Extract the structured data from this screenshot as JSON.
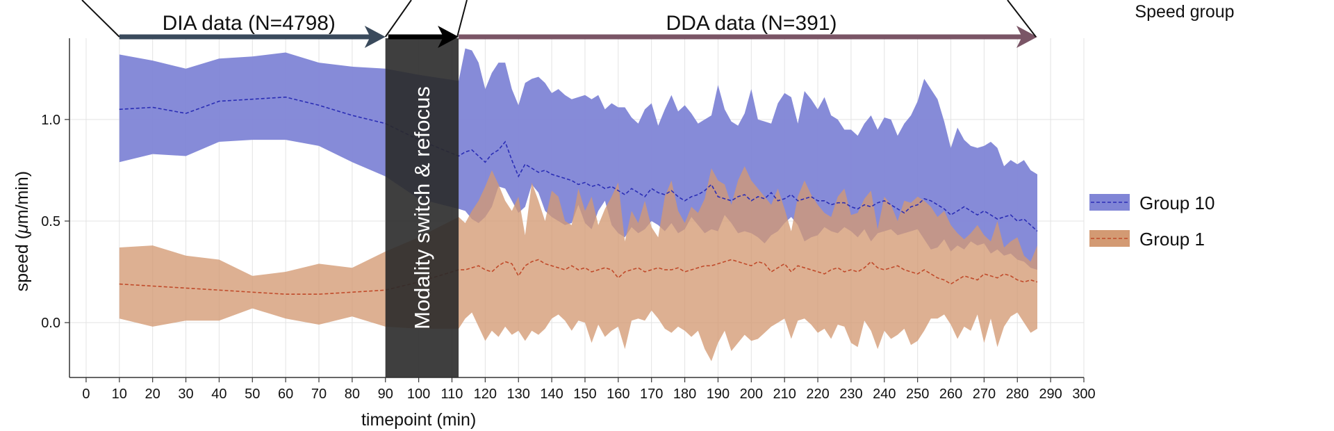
{
  "chart_data": {
    "type": "area",
    "xlabel": "timepoint (min)",
    "ylabel_prefix": "speed (",
    "ylabel_mu": "μ",
    "ylabel_suffix": "m/min)",
    "xlim": [
      -5,
      300
    ],
    "ylim": [
      -0.27,
      1.4
    ],
    "xticks": [
      0,
      10,
      20,
      30,
      40,
      50,
      60,
      70,
      80,
      90,
      100,
      110,
      120,
      130,
      140,
      150,
      160,
      170,
      180,
      190,
      200,
      210,
      220,
      230,
      240,
      250,
      260,
      270,
      280,
      290,
      300
    ],
    "yticks": [
      0.0,
      0.5,
      1.0
    ],
    "ytick_labels": [
      "0.0",
      "0.5",
      "1.0"
    ],
    "grid": true,
    "legend": {
      "title": "Speed group",
      "position": "right",
      "items": [
        {
          "label": "Group 10",
          "fill": "#8085d6",
          "line": "#2a2db5"
        },
        {
          "label": "Group 1",
          "fill": "#d39a73",
          "line": "#c04a2a"
        }
      ]
    },
    "annotations": {
      "dia": {
        "label": "DIA data (N=4798)",
        "x_start": 10,
        "x_end": 90,
        "color": "#3a4a5c"
      },
      "switch": {
        "x_start": 90,
        "x_end": 112,
        "color": "#000000"
      },
      "dda": {
        "label": "DDA data (N=391)",
        "x_start": 112,
        "x_end": 286,
        "color": "#7a5566"
      },
      "modality_box": {
        "label": "Modality switch & refocus",
        "x_start": 90,
        "x_end": 112,
        "y_min": -0.27,
        "color": "#2a2a2a"
      }
    },
    "series": [
      {
        "name": "Group 10",
        "x": [
          10,
          20,
          30,
          40,
          50,
          60,
          70,
          80,
          90,
          100,
          112,
          114,
          116,
          118,
          120,
          122,
          124,
          126,
          128,
          130,
          132,
          134,
          136,
          138,
          140,
          142,
          144,
          146,
          148,
          150,
          152,
          154,
          156,
          158,
          160,
          162,
          164,
          166,
          168,
          170,
          172,
          174,
          176,
          178,
          180,
          182,
          184,
          186,
          188,
          190,
          192,
          194,
          196,
          198,
          200,
          202,
          204,
          206,
          208,
          210,
          212,
          214,
          216,
          218,
          220,
          222,
          224,
          226,
          228,
          230,
          232,
          234,
          236,
          238,
          240,
          242,
          244,
          246,
          248,
          250,
          252,
          254,
          256,
          258,
          260,
          262,
          264,
          266,
          268,
          270,
          272,
          274,
          276,
          278,
          280,
          282,
          284,
          286
        ],
        "mean": [
          1.05,
          1.06,
          1.03,
          1.09,
          1.1,
          1.11,
          1.07,
          1.02,
          0.98,
          0.9,
          0.82,
          0.84,
          0.85,
          0.82,
          0.79,
          0.83,
          0.85,
          0.89,
          0.8,
          0.72,
          0.78,
          0.76,
          0.74,
          0.75,
          0.73,
          0.72,
          0.71,
          0.7,
          0.68,
          0.69,
          0.67,
          0.68,
          0.66,
          0.67,
          0.65,
          0.63,
          0.66,
          0.64,
          0.62,
          0.66,
          0.64,
          0.63,
          0.65,
          0.62,
          0.6,
          0.62,
          0.63,
          0.65,
          0.68,
          0.62,
          0.61,
          0.6,
          0.62,
          0.63,
          0.6,
          0.62,
          0.61,
          0.64,
          0.6,
          0.61,
          0.63,
          0.6,
          0.61,
          0.62,
          0.6,
          0.6,
          0.58,
          0.59,
          0.59,
          0.57,
          0.56,
          0.58,
          0.57,
          0.59,
          0.6,
          0.58,
          0.56,
          0.54,
          0.57,
          0.58,
          0.61,
          0.6,
          0.58,
          0.56,
          0.53,
          0.55,
          0.57,
          0.55,
          0.53,
          0.55,
          0.53,
          0.51,
          0.52,
          0.53,
          0.5,
          0.51,
          0.48,
          0.45
        ],
        "upper": [
          1.32,
          1.29,
          1.25,
          1.3,
          1.31,
          1.33,
          1.28,
          1.26,
          1.25,
          1.22,
          1.19,
          1.35,
          1.34,
          1.28,
          1.15,
          1.23,
          1.28,
          1.28,
          1.15,
          1.07,
          1.18,
          1.2,
          1.21,
          1.18,
          1.13,
          1.15,
          1.12,
          1.1,
          1.11,
          1.12,
          1.1,
          1.12,
          1.05,
          1.08,
          1.06,
          1.06,
          1.01,
          0.98,
          1.05,
          1.08,
          0.97,
          1.05,
          1.12,
          1.04,
          1.07,
          1.03,
          0.98,
          1.0,
          1.02,
          1.17,
          1.05,
          0.99,
          0.97,
          1.03,
          1.15,
          1.0,
          0.99,
          0.98,
          1.08,
          1.13,
          1.11,
          0.98,
          1.14,
          1.1,
          1.05,
          1.11,
          1.02,
          1.0,
          0.95,
          0.95,
          0.92,
          0.98,
          1.02,
          0.95,
          1.01,
          1.0,
          0.92,
          0.98,
          1.02,
          1.09,
          1.2,
          1.15,
          1.1,
          0.99,
          0.86,
          0.96,
          0.9,
          0.87,
          0.86,
          0.87,
          0.89,
          0.86,
          0.77,
          0.8,
          0.78,
          0.8,
          0.75,
          0.73
        ],
        "lower": [
          0.79,
          0.83,
          0.82,
          0.89,
          0.9,
          0.9,
          0.87,
          0.79,
          0.72,
          0.61,
          0.56,
          0.55,
          0.51,
          0.49,
          0.52,
          0.57,
          0.67,
          0.66,
          0.6,
          0.54,
          0.57,
          0.68,
          0.64,
          0.55,
          0.52,
          0.5,
          0.48,
          0.49,
          0.58,
          0.49,
          0.46,
          0.55,
          0.6,
          0.48,
          0.44,
          0.42,
          0.47,
          0.44,
          0.46,
          0.5,
          0.48,
          0.45,
          0.49,
          0.44,
          0.46,
          0.52,
          0.48,
          0.44,
          0.46,
          0.45,
          0.53,
          0.49,
          0.44,
          0.45,
          0.44,
          0.42,
          0.39,
          0.43,
          0.45,
          0.49,
          0.52,
          0.48,
          0.4,
          0.42,
          0.43,
          0.47,
          0.45,
          0.44,
          0.47,
          0.45,
          0.42,
          0.46,
          0.4,
          0.44,
          0.45,
          0.46,
          0.43,
          0.44,
          0.45,
          0.46,
          0.41,
          0.36,
          0.37,
          0.41,
          0.35,
          0.38,
          0.36,
          0.4,
          0.38,
          0.39,
          0.34,
          0.36,
          0.33,
          0.34,
          0.31,
          0.3,
          0.27,
          0.26
        ]
      },
      {
        "name": "Group 1",
        "x": [
          10,
          20,
          30,
          40,
          50,
          60,
          70,
          80,
          90,
          100,
          112,
          114,
          116,
          118,
          120,
          122,
          124,
          126,
          128,
          130,
          132,
          134,
          136,
          138,
          140,
          142,
          144,
          146,
          148,
          150,
          152,
          154,
          156,
          158,
          160,
          162,
          164,
          166,
          168,
          170,
          172,
          174,
          176,
          178,
          180,
          182,
          184,
          186,
          188,
          190,
          192,
          194,
          196,
          198,
          200,
          202,
          204,
          206,
          208,
          210,
          212,
          214,
          216,
          218,
          220,
          222,
          224,
          226,
          228,
          230,
          232,
          234,
          236,
          238,
          240,
          242,
          244,
          246,
          248,
          250,
          252,
          254,
          256,
          258,
          260,
          262,
          264,
          266,
          268,
          270,
          272,
          274,
          276,
          278,
          280,
          282,
          284,
          286
        ],
        "mean": [
          0.19,
          0.18,
          0.17,
          0.16,
          0.15,
          0.14,
          0.14,
          0.15,
          0.16,
          0.2,
          0.26,
          0.26,
          0.27,
          0.28,
          0.26,
          0.25,
          0.28,
          0.3,
          0.29,
          0.23,
          0.28,
          0.3,
          0.31,
          0.29,
          0.28,
          0.27,
          0.26,
          0.28,
          0.26,
          0.27,
          0.25,
          0.26,
          0.27,
          0.26,
          0.22,
          0.25,
          0.26,
          0.27,
          0.25,
          0.26,
          0.27,
          0.26,
          0.26,
          0.27,
          0.25,
          0.26,
          0.27,
          0.28,
          0.28,
          0.29,
          0.3,
          0.31,
          0.3,
          0.29,
          0.28,
          0.3,
          0.29,
          0.25,
          0.27,
          0.29,
          0.25,
          0.28,
          0.27,
          0.26,
          0.25,
          0.24,
          0.26,
          0.27,
          0.25,
          0.26,
          0.25,
          0.27,
          0.3,
          0.27,
          0.26,
          0.27,
          0.28,
          0.26,
          0.25,
          0.24,
          0.26,
          0.24,
          0.22,
          0.21,
          0.19,
          0.21,
          0.23,
          0.22,
          0.21,
          0.24,
          0.23,
          0.22,
          0.24,
          0.23,
          0.21,
          0.2,
          0.21,
          0.2
        ],
        "upper": [
          0.37,
          0.38,
          0.33,
          0.31,
          0.23,
          0.25,
          0.29,
          0.27,
          0.35,
          0.42,
          0.52,
          0.49,
          0.55,
          0.6,
          0.67,
          0.75,
          0.68,
          0.6,
          0.55,
          0.62,
          0.43,
          0.69,
          0.6,
          0.5,
          0.65,
          0.62,
          0.5,
          0.48,
          0.66,
          0.55,
          0.62,
          0.48,
          0.56,
          0.62,
          0.69,
          0.4,
          0.55,
          0.49,
          0.6,
          0.47,
          0.42,
          0.62,
          0.7,
          0.55,
          0.49,
          0.57,
          0.54,
          0.61,
          0.76,
          0.7,
          0.68,
          0.58,
          0.7,
          0.77,
          0.7,
          0.66,
          0.62,
          0.58,
          0.66,
          0.56,
          0.45,
          0.62,
          0.7,
          0.63,
          0.58,
          0.54,
          0.52,
          0.62,
          0.66,
          0.53,
          0.54,
          0.61,
          0.65,
          0.46,
          0.62,
          0.58,
          0.5,
          0.6,
          0.59,
          0.62,
          0.6,
          0.57,
          0.52,
          0.55,
          0.48,
          0.44,
          0.41,
          0.44,
          0.48,
          0.43,
          0.4,
          0.5,
          0.37,
          0.4,
          0.42,
          0.33,
          0.3,
          0.38
        ],
        "lower": [
          0.02,
          -0.02,
          0.01,
          0.01,
          0.07,
          0.02,
          -0.01,
          0.03,
          -0.02,
          -0.03,
          -0.03,
          0.02,
          0.05,
          -0.02,
          -0.09,
          -0.04,
          -0.07,
          -0.02,
          -0.06,
          -0.04,
          -0.09,
          -0.04,
          -0.06,
          -0.03,
          0.02,
          0.04,
          0.01,
          -0.04,
          0.01,
          0.0,
          -0.1,
          -0.01,
          -0.07,
          -0.04,
          -0.02,
          -0.13,
          0.01,
          0.02,
          0.01,
          0.06,
          0.02,
          -0.03,
          -0.05,
          -0.02,
          -0.04,
          -0.07,
          -0.04,
          -0.13,
          -0.19,
          -0.1,
          -0.04,
          -0.14,
          -0.1,
          -0.06,
          -0.09,
          -0.08,
          -0.05,
          -0.02,
          0.0,
          0.02,
          -0.08,
          0.01,
          0.02,
          -0.01,
          -0.05,
          -0.03,
          -0.08,
          -0.01,
          -0.02,
          -0.1,
          -0.12,
          0.01,
          -0.04,
          -0.13,
          -0.04,
          -0.08,
          -0.06,
          -0.03,
          -0.11,
          -0.09,
          -0.04,
          0.02,
          0.02,
          0.04,
          -0.01,
          -0.08,
          -0.02,
          -0.04,
          0.04,
          -0.1,
          0.02,
          -0.12,
          -0.02,
          0.03,
          0.05,
          0.0,
          -0.05,
          -0.03
        ]
      }
    ]
  }
}
